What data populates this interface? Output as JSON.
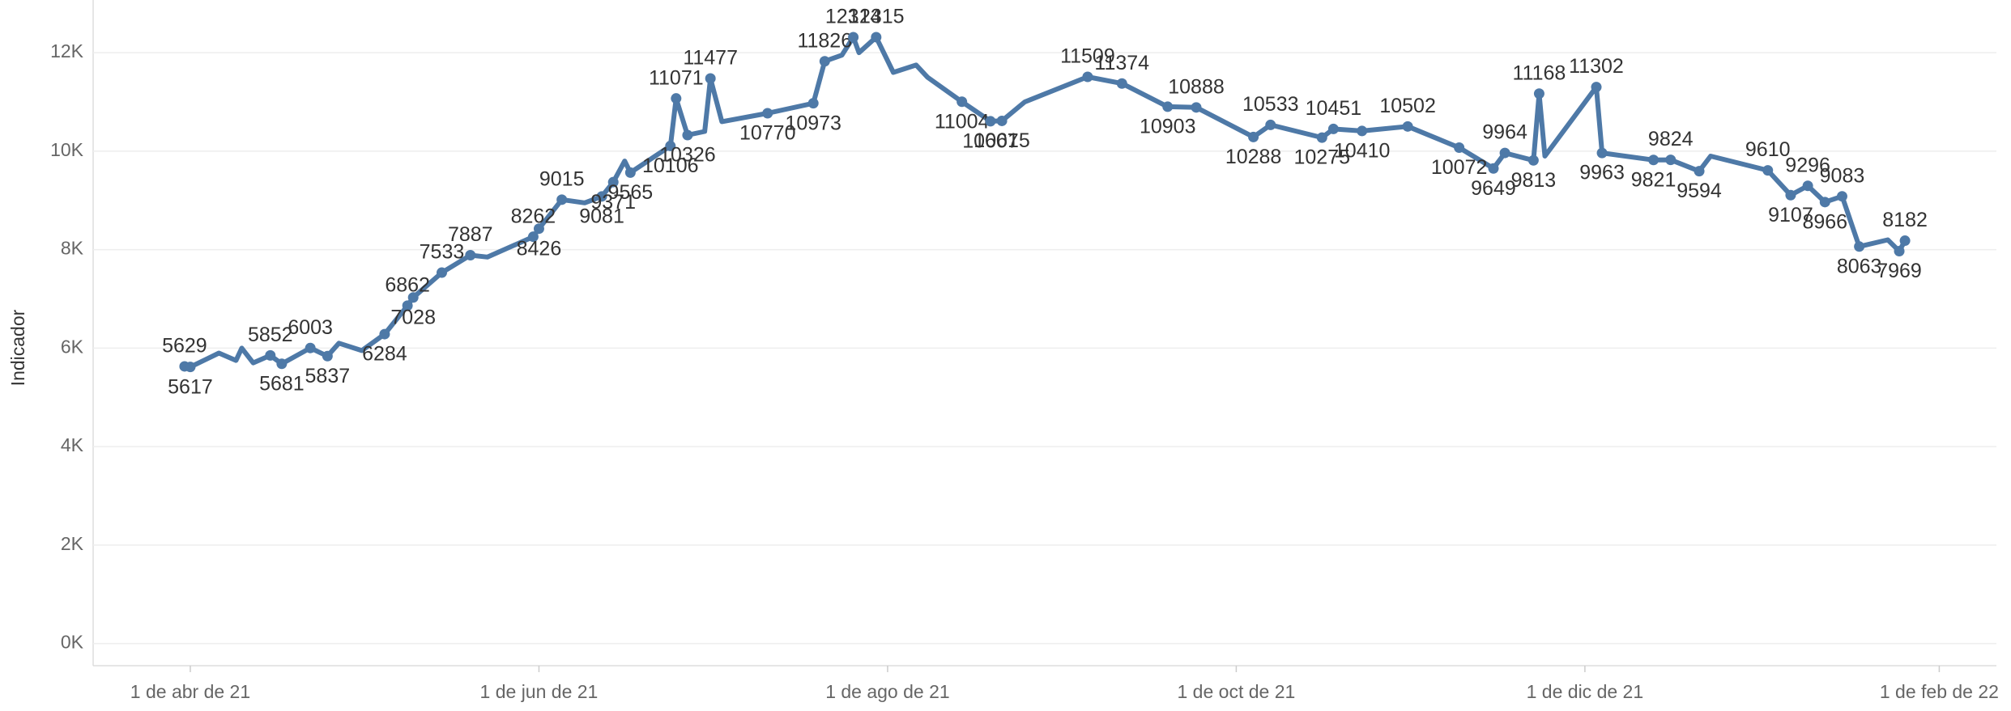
{
  "chart_data": {
    "type": "line",
    "y_label": "Indicador",
    "xlim": [
      "2021-03-15",
      "2022-02-11"
    ],
    "ylim": [
      -450,
      13070
    ],
    "xticks": [
      {
        "value": "2021-04-01",
        "label": "1 de abr de 21"
      },
      {
        "value": "2021-06-01",
        "label": "1 de jun de 21"
      },
      {
        "value": "2021-08-01",
        "label": "1 de ago de 21"
      },
      {
        "value": "2021-10-01",
        "label": "1 de oct de 21"
      },
      {
        "value": "2021-12-01",
        "label": "1 de dic de 21"
      },
      {
        "value": "2022-02-01",
        "label": "1 de feb de 22"
      }
    ],
    "yticks": [
      {
        "value": 0,
        "label": "0K"
      },
      {
        "value": 2000,
        "label": "2K"
      },
      {
        "value": 4000,
        "label": "4K"
      },
      {
        "value": 6000,
        "label": "6K"
      },
      {
        "value": 8000,
        "label": "8K"
      },
      {
        "value": 10000,
        "label": "10K"
      },
      {
        "value": 12000,
        "label": "12K"
      }
    ],
    "grid": true,
    "series": [
      {
        "name": "Indicador",
        "color": "#4e79a7",
        "x": [
          "2021-03-31",
          "2021-04-01",
          "2021-04-06",
          "2021-04-09",
          "2021-04-10",
          "2021-04-12",
          "2021-04-15",
          "2021-04-17",
          "2021-04-22",
          "2021-04-25",
          "2021-04-27",
          "2021-05-01",
          "2021-05-05",
          "2021-05-09",
          "2021-05-10",
          "2021-05-15",
          "2021-05-20",
          "2021-05-23",
          "2021-05-31",
          "2021-06-01",
          "2021-06-05",
          "2021-06-09",
          "2021-06-12",
          "2021-06-14",
          "2021-06-16",
          "2021-06-17",
          "2021-06-24",
          "2021-06-25",
          "2021-06-27",
          "2021-06-30",
          "2021-07-01",
          "2021-07-03",
          "2021-07-11",
          "2021-07-19",
          "2021-07-21",
          "2021-07-24",
          "2021-07-26",
          "2021-07-27",
          "2021-07-30",
          "2021-08-02",
          "2021-08-06",
          "2021-08-08",
          "2021-08-14",
          "2021-08-19",
          "2021-08-21",
          "2021-08-25",
          "2021-09-05",
          "2021-09-11",
          "2021-09-19",
          "2021-09-24",
          "2021-10-04",
          "2021-10-07",
          "2021-10-16",
          "2021-10-18",
          "2021-10-23",
          "2021-10-31",
          "2021-11-09",
          "2021-11-15",
          "2021-11-17",
          "2021-11-22",
          "2021-11-23",
          "2021-11-24",
          "2021-12-03",
          "2021-12-04",
          "2021-12-13",
          "2021-12-16",
          "2021-12-21",
          "2021-12-23",
          "2022-01-02",
          "2022-01-06",
          "2022-01-09",
          "2022-01-12",
          "2022-01-15",
          "2022-01-18",
          "2022-01-23",
          "2022-01-25",
          "2022-01-26"
        ],
        "values": [
          5629,
          5617,
          5900,
          5750,
          6000,
          5700,
          5852,
          5681,
          6003,
          5837,
          6100,
          5950,
          6284,
          6862,
          7028,
          7533,
          7887,
          7850,
          8262,
          8426,
          9015,
          8950,
          9081,
          9371,
          9800,
          9565,
          10106,
          11071,
          10326,
          10400,
          11477,
          10600,
          10770,
          10973,
          11826,
          11950,
          12314,
          12000,
          12315,
          11600,
          11750,
          11500,
          11004,
          10607,
          10615,
          11000,
          11509,
          11374,
          10903,
          10888,
          10288,
          10533,
          10275,
          10451,
          10410,
          10502,
          10072,
          9649,
          9964,
          9813,
          11168,
          9900,
          11302,
          9963,
          9821,
          9824,
          9594,
          9900,
          9610,
          9107,
          9296,
          8966,
          9083,
          8063,
          8200,
          7969,
          8182
        ],
        "value_labels": [
          "5629",
          "5617",
          null,
          null,
          null,
          null,
          "5852",
          "5681",
          "6003",
          "5837",
          null,
          null,
          "6284",
          "6862",
          "7028",
          "7533",
          "7887",
          null,
          "8262",
          "8426",
          "9015",
          null,
          "9081",
          "9371",
          null,
          "9565",
          "10106",
          "11071",
          "10326",
          null,
          "11477",
          null,
          "10770",
          "10973",
          "11826",
          null,
          "12314",
          null,
          "12315",
          null,
          null,
          null,
          "11004",
          "10607",
          "10615",
          null,
          "11509",
          "11374",
          "10903",
          "10888",
          "10288",
          "10533",
          "10275",
          "10451",
          "10410",
          "10502",
          "10072",
          "9649",
          "9964",
          "9813",
          "11168",
          null,
          "11302",
          "9963",
          "9821",
          "9824",
          "9594",
          null,
          "9610",
          "9107",
          "9296",
          "8966",
          "9083",
          "8063",
          null,
          "7969",
          "8182"
        ]
      }
    ]
  }
}
